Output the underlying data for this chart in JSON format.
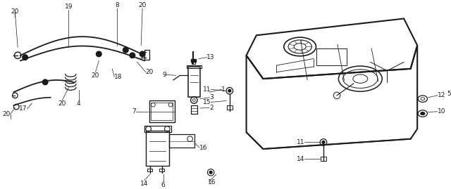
{
  "background_color": "#ffffff",
  "line_color": "#1a1a1a",
  "figsize": [
    6.4,
    2.69
  ],
  "dpi": 100
}
